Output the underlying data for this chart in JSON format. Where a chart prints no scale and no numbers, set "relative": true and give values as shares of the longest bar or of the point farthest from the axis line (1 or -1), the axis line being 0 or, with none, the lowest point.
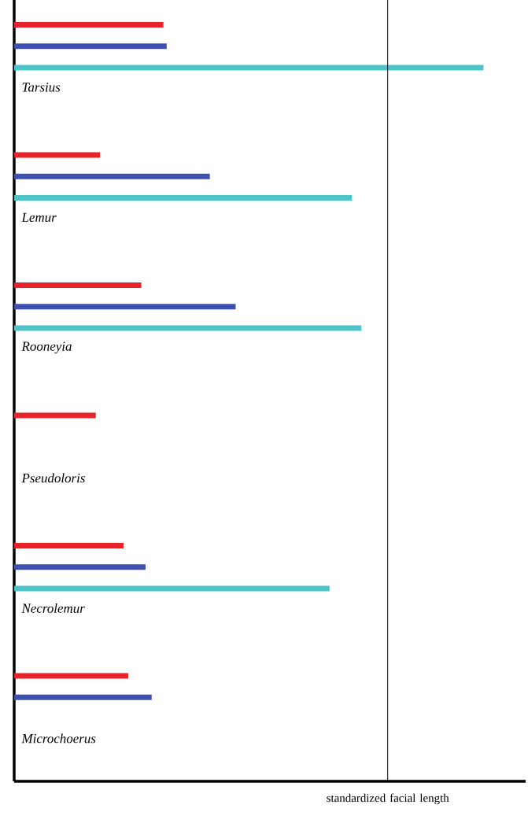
{
  "chart_data": {
    "type": "bar",
    "orientation": "horizontal",
    "relative": true,
    "categories": [
      "Tarsius",
      "Lemur",
      "Rooneyia",
      "Pseudoloris",
      "Necrolemur",
      "Microchoerus"
    ],
    "series": [
      {
        "color": "#e8222a",
        "values": [
          0.318,
          0.183,
          0.271,
          0.174,
          0.233,
          0.243
        ]
      },
      {
        "color": "#3f51b0",
        "values": [
          0.325,
          0.417,
          0.472,
          null,
          0.28,
          0.293
        ]
      },
      {
        "color": "#4fc4c8",
        "values": [
          1,
          0.72,
          0.74,
          null,
          0.672,
          null
        ]
      }
    ],
    "ref_lines": [
      {
        "axis": "x",
        "value": 0.796,
        "label": "standardized facial length"
      }
    ]
  }
}
